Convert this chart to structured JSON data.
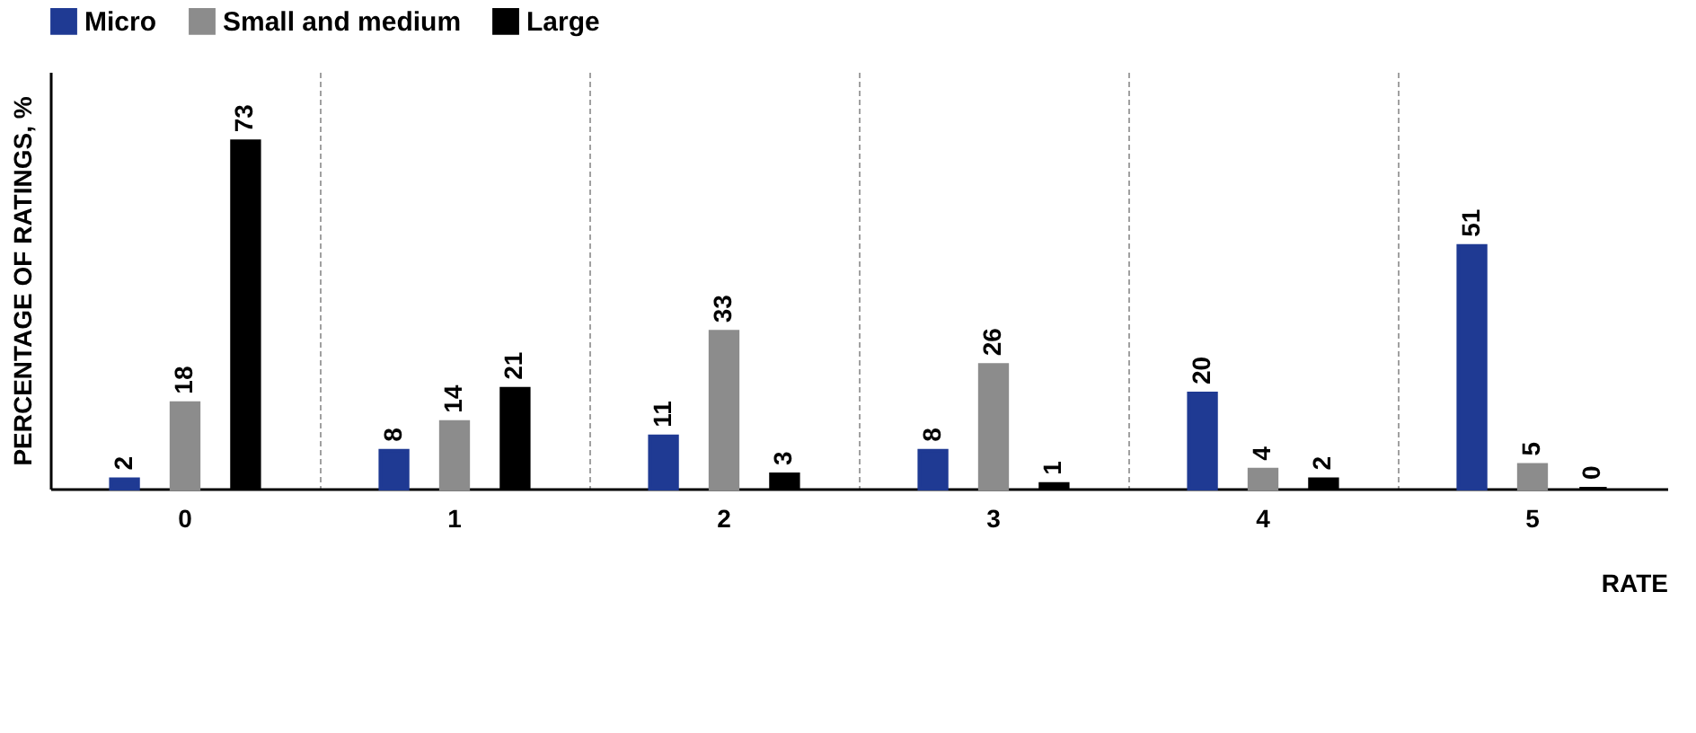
{
  "chart_data": {
    "type": "bar",
    "xlabel": "RATE",
    "ylabel": "PERCENTAGE OF RATINGS, %",
    "categories": [
      "0",
      "1",
      "2",
      "3",
      "4",
      "5"
    ],
    "series": [
      {
        "name": "Micro",
        "color": "#1f3a93",
        "values": [
          2,
          8,
          11,
          8,
          20,
          51
        ]
      },
      {
        "name": "Small and medium",
        "color": "#8c8c8c",
        "values": [
          18,
          14,
          33,
          26,
          4,
          5
        ]
      },
      {
        "name": "Large",
        "color": "#000000",
        "values": [
          73,
          21,
          3,
          1,
          2,
          0
        ]
      }
    ],
    "data_labels": true,
    "legend": "top",
    "grid": "x",
    "tick_labels": "x"
  }
}
